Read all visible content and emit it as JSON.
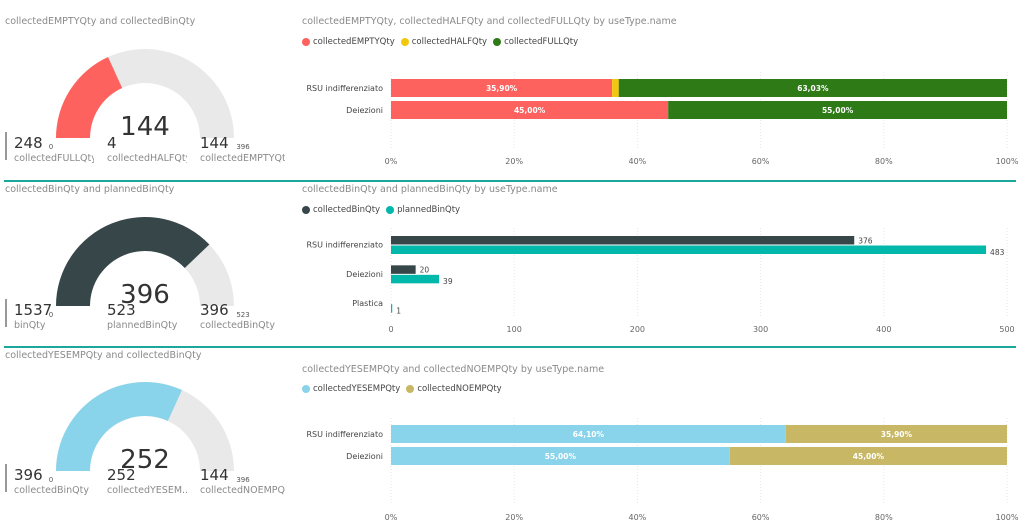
{
  "colors": {
    "empty": "#fd625e",
    "half": "#f2c80f",
    "full": "#2d7a16",
    "collected": "#374649",
    "planned": "#01b8aa",
    "yesemp": "#8ad4eb",
    "noemp": "#c8b865",
    "gauge_bg": "#e9e9e9",
    "divider": "#1aa89c"
  },
  "panels": [
    {
      "gauge_title": "collectedEMPTYQty and collectedBinQty",
      "gauge": {
        "value": 144,
        "value_label": "144",
        "min": 0,
        "max": 396,
        "min_label": "0",
        "max_label": "396",
        "color": "#fd625e"
      },
      "kpis": [
        {
          "value": "248",
          "label": "collectedFULLQty"
        },
        {
          "value": "4",
          "label": "collectedHALFQty"
        },
        {
          "value": "144",
          "label": "collectedEMPTYQty"
        }
      ],
      "chart_title": "collectedEMPTYQty, collectedHALFQty and collectedFULLQty by useType.name",
      "chart_data": {
        "type": "bar",
        "orientation": "horizontal",
        "stacked": "100%",
        "title": "collectedEMPTYQty, collectedHALFQty and collectedFULLQty by useType.name",
        "categories": [
          "RSU indifferenziato",
          "Deiezioni"
        ],
        "series": [
          {
            "name": "collectedEMPTYQty",
            "color": "#fd625e",
            "values": [
              35.9,
              45.0
            ],
            "labels": [
              "35,90%",
              "45,00%"
            ]
          },
          {
            "name": "collectedHALFQty",
            "color": "#f2c80f",
            "values": [
              1.07,
              0
            ],
            "labels": [
              "",
              ""
            ]
          },
          {
            "name": "collectedFULLQty",
            "color": "#2d7a16",
            "values": [
              63.03,
              55.0
            ],
            "labels": [
              "63,03%",
              "55,00%"
            ]
          }
        ],
        "xlim": [
          0,
          100
        ],
        "ticks": [
          0,
          20,
          40,
          60,
          80,
          100
        ],
        "tick_labels": [
          "0%",
          "20%",
          "40%",
          "60%",
          "80%",
          "100%"
        ],
        "legend_position": "top-left",
        "grid": true
      }
    },
    {
      "gauge_title": "collectedBinQty and plannedBinQty",
      "gauge": {
        "value": 396,
        "value_label": "396",
        "min": 0,
        "max": 523,
        "min_label": "0",
        "max_label": "523",
        "color": "#374649"
      },
      "kpis": [
        {
          "value": "1537",
          "label": "binQty"
        },
        {
          "value": "523",
          "label": "plannedBinQty"
        },
        {
          "value": "396",
          "label": "collectedBinQty"
        }
      ],
      "chart_title": "collectedBinQty and plannedBinQty by useType.name",
      "chart_data": {
        "type": "bar",
        "orientation": "horizontal",
        "stacked": "grouped",
        "title": "collectedBinQty and plannedBinQty by useType.name",
        "categories": [
          "RSU indifferenziato",
          "Deiezioni",
          "Plastica"
        ],
        "series": [
          {
            "name": "collectedBinQty",
            "color": "#374649",
            "values": [
              376,
              20,
              0
            ],
            "labels": [
              "376",
              "20",
              ""
            ]
          },
          {
            "name": "plannedBinQty",
            "color": "#01b8aa",
            "values": [
              483,
              39,
              1
            ],
            "labels": [
              "483",
              "39",
              "1"
            ]
          }
        ],
        "xlim": [
          0,
          500
        ],
        "ticks": [
          0,
          100,
          200,
          300,
          400,
          500
        ],
        "tick_labels": [
          "0",
          "100",
          "200",
          "300",
          "400",
          "500"
        ],
        "legend_position": "top-left",
        "grid": true
      }
    },
    {
      "gauge_title": "collectedYESEMPQty and collectedBinQty",
      "gauge": {
        "value": 252,
        "value_label": "252",
        "min": 0,
        "max": 396,
        "min_label": "0",
        "max_label": "396",
        "color": "#8ad4eb"
      },
      "kpis": [
        {
          "value": "396",
          "label": "collectedBinQty"
        },
        {
          "value": "252",
          "label": "collectedYESEM..."
        },
        {
          "value": "144",
          "label": "collectedNOEMPQty"
        }
      ],
      "chart_title": "collectedYESEMPQty and collectedNOEMPQty by useType.name",
      "chart_data": {
        "type": "bar",
        "orientation": "horizontal",
        "stacked": "100%",
        "title": "collectedYESEMPQty and collectedNOEMPQty by useType.name",
        "categories": [
          "RSU indifferenziato",
          "Deiezioni"
        ],
        "series": [
          {
            "name": "collectedYESEMPQty",
            "color": "#8ad4eb",
            "values": [
              64.1,
              55.0
            ],
            "labels": [
              "64,10%",
              "55,00%"
            ]
          },
          {
            "name": "collectedNOEMPQty",
            "color": "#c8b865",
            "values": [
              35.9,
              45.0
            ],
            "labels": [
              "35,90%",
              "45,00%"
            ]
          }
        ],
        "xlim": [
          0,
          100
        ],
        "ticks": [
          0,
          20,
          40,
          60,
          80,
          100
        ],
        "tick_labels": [
          "0%",
          "20%",
          "40%",
          "60%",
          "80%",
          "100%"
        ],
        "legend_position": "top-left",
        "grid": true
      }
    }
  ]
}
